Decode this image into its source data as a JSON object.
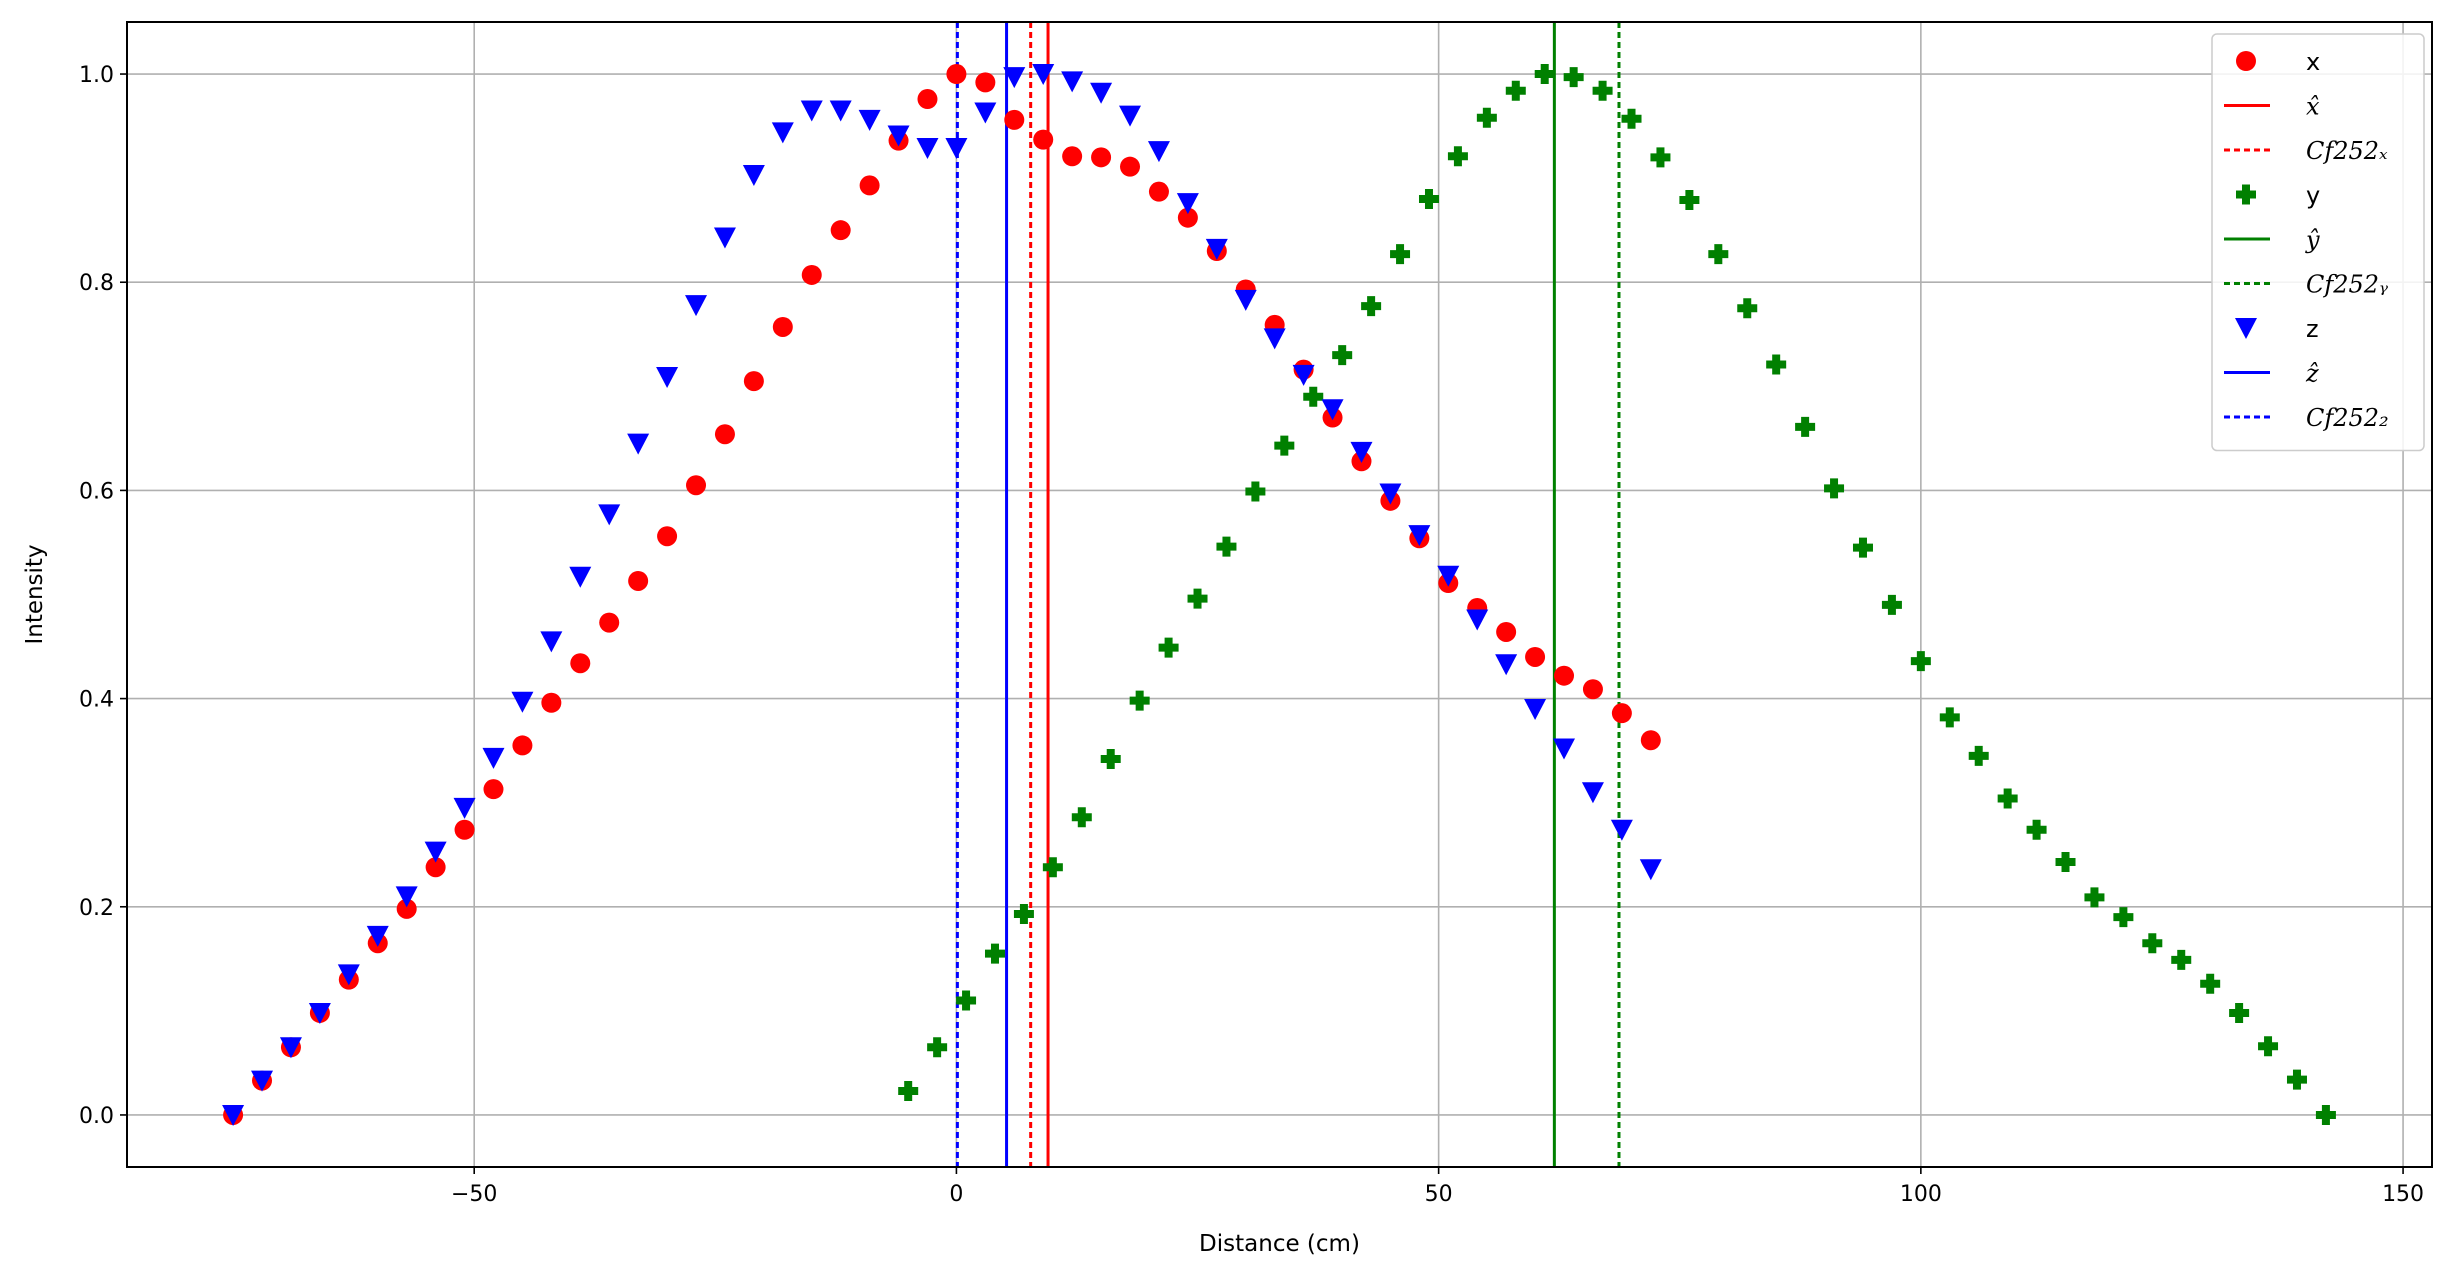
{
  "chart_data": {
    "type": "scatter",
    "xlabel": "Distance (cm)",
    "ylabel": "Intensity",
    "xlim": [
      -86,
      153
    ],
    "ylim": [
      -0.05,
      1.05
    ],
    "xticks": [
      -50,
      0,
      50,
      100,
      150
    ],
    "xtick_labels": [
      "−50",
      "0",
      "50",
      "100",
      "150"
    ],
    "yticks": [
      0.0,
      0.2,
      0.4,
      0.6,
      0.8,
      1.0
    ],
    "ytick_labels": [
      "0.0",
      "0.2",
      "0.4",
      "0.6",
      "0.8",
      "1.0"
    ],
    "grid": true,
    "legend_placement": "top-right",
    "series": [
      {
        "name": "x",
        "marker": "circle",
        "color": "#ff0000",
        "x": [
          -75,
          -72,
          -69,
          -66,
          -63,
          -60,
          -57,
          -54,
          -51,
          -48,
          -45,
          -42,
          -39,
          -36,
          -33,
          -30,
          -27,
          -24,
          -21,
          -18,
          -15,
          -12,
          -9,
          -6,
          -3,
          0,
          3,
          6,
          9,
          12,
          15,
          18,
          21,
          24,
          27,
          30,
          33,
          36,
          39,
          42,
          45,
          48,
          51,
          54,
          57,
          60,
          63,
          66,
          69,
          72
        ],
        "y": [
          0.0,
          0.033,
          0.065,
          0.098,
          0.13,
          0.165,
          0.198,
          0.238,
          0.274,
          0.313,
          0.355,
          0.396,
          0.434,
          0.473,
          0.513,
          0.556,
          0.605,
          0.654,
          0.705,
          0.757,
          0.807,
          0.85,
          0.893,
          0.936,
          0.976,
          1.0,
          0.992,
          0.956,
          0.937,
          0.921,
          0.92,
          0.911,
          0.887,
          0.862,
          0.83,
          0.793,
          0.759,
          0.716,
          0.67,
          0.628,
          0.59,
          0.554,
          0.511,
          0.487,
          0.464,
          0.44,
          0.422,
          0.409,
          0.386,
          0.36
        ]
      },
      {
        "name": "y",
        "marker": "plus",
        "color": "#008000",
        "x": [
          -5,
          -2,
          1,
          4,
          7,
          10,
          13,
          16,
          19,
          22,
          25,
          28,
          31,
          34,
          37,
          40,
          43,
          46,
          49,
          52,
          55,
          58,
          61,
          64,
          67,
          70,
          73,
          76,
          79,
          82,
          85,
          88,
          91,
          94,
          97,
          100,
          103,
          106,
          109,
          112,
          115,
          118,
          121,
          124,
          127,
          130,
          133,
          136,
          139,
          142
        ],
        "y": [
          0.023,
          0.065,
          0.11,
          0.155,
          0.193,
          0.238,
          0.286,
          0.342,
          0.398,
          0.449,
          0.496,
          0.546,
          0.599,
          0.643,
          0.69,
          0.73,
          0.777,
          0.827,
          0.88,
          0.921,
          0.958,
          0.984,
          1.0,
          0.997,
          0.984,
          0.957,
          0.92,
          0.879,
          0.827,
          0.775,
          0.721,
          0.661,
          0.602,
          0.545,
          0.49,
          0.436,
          0.382,
          0.345,
          0.304,
          0.274,
          0.243,
          0.209,
          0.19,
          0.165,
          0.149,
          0.126,
          0.098,
          0.066,
          0.034,
          0.0
        ]
      },
      {
        "name": "z",
        "marker": "triangle-down",
        "color": "#0000ff",
        "x": [
          -75,
          -72,
          -69,
          -66,
          -63,
          -60,
          -57,
          -54,
          -51,
          -48,
          -45,
          -42,
          -39,
          -36,
          -33,
          -30,
          -27,
          -24,
          -21,
          -18,
          -15,
          -12,
          -9,
          -6,
          -3,
          0,
          3,
          6,
          9,
          12,
          15,
          18,
          21,
          24,
          27,
          30,
          33,
          36,
          39,
          42,
          45,
          48,
          51,
          54,
          57,
          60,
          63,
          66,
          69,
          72
        ],
        "y": [
          0.0,
          0.033,
          0.065,
          0.098,
          0.135,
          0.172,
          0.21,
          0.253,
          0.295,
          0.343,
          0.397,
          0.455,
          0.517,
          0.577,
          0.645,
          0.709,
          0.778,
          0.843,
          0.903,
          0.944,
          0.965,
          0.965,
          0.956,
          0.941,
          0.929,
          0.929,
          0.963,
          0.997,
          1.0,
          0.993,
          0.982,
          0.96,
          0.926,
          0.876,
          0.832,
          0.783,
          0.746,
          0.711,
          0.678,
          0.637,
          0.597,
          0.557,
          0.518,
          0.476,
          0.433,
          0.39,
          0.352,
          0.31,
          0.274,
          0.236
        ]
      }
    ],
    "vlines": [
      {
        "name": "x̂",
        "color": "#ff0000",
        "style": "solid",
        "x": 9.5
      },
      {
        "name": "Cf252ₓ",
        "color": "#ff0000",
        "style": "dashed",
        "x": 7.7
      },
      {
        "name": "ŷ",
        "color": "#008000",
        "style": "solid",
        "x": 62
      },
      {
        "name": "Cf252ᵧ",
        "color": "#008000",
        "style": "dashed",
        "x": 68.7
      },
      {
        "name": "ẑ",
        "color": "#0000ff",
        "style": "solid",
        "x": 5.2
      },
      {
        "name": "Cf252₂",
        "color": "#0000ff",
        "style": "dashed",
        "x": 0.1
      }
    ],
    "legend": [
      {
        "label": "x",
        "kind": "marker",
        "marker": "circle",
        "color": "#ff0000"
      },
      {
        "label": "x̂",
        "kind": "line",
        "style": "solid",
        "color": "#ff0000"
      },
      {
        "label": "Cf252ₓ",
        "kind": "line",
        "style": "dashed",
        "color": "#ff0000"
      },
      {
        "label": "y",
        "kind": "marker",
        "marker": "plus",
        "color": "#008000"
      },
      {
        "label": "ŷ",
        "kind": "line",
        "style": "solid",
        "color": "#008000"
      },
      {
        "label": "Cf252ᵧ",
        "kind": "line",
        "style": "dashed",
        "color": "#008000"
      },
      {
        "label": "z",
        "kind": "marker",
        "marker": "triangle-down",
        "color": "#0000ff"
      },
      {
        "label": "ẑ",
        "kind": "line",
        "style": "solid",
        "color": "#0000ff"
      },
      {
        "label": "Cf252₂",
        "kind": "line",
        "style": "dashed",
        "color": "#0000ff"
      }
    ]
  }
}
